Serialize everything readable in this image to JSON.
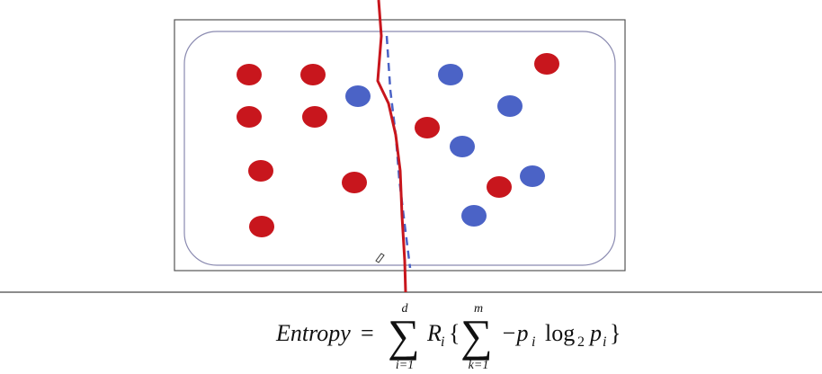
{
  "formula": {
    "lhs": "Entropy",
    "equals": "=",
    "sigma": "∑",
    "sum1": {
      "upper": "d",
      "lower": "i=1"
    },
    "term": "R",
    "term_sub": "i",
    "open": "{",
    "sum2": {
      "upper": "m",
      "lower": "k=1"
    },
    "minus_p": "−p",
    "p_sub": "i",
    "log": "log",
    "log_sub": "2",
    "p2": "p",
    "p2_sub": "i",
    "close": "}"
  }
}
